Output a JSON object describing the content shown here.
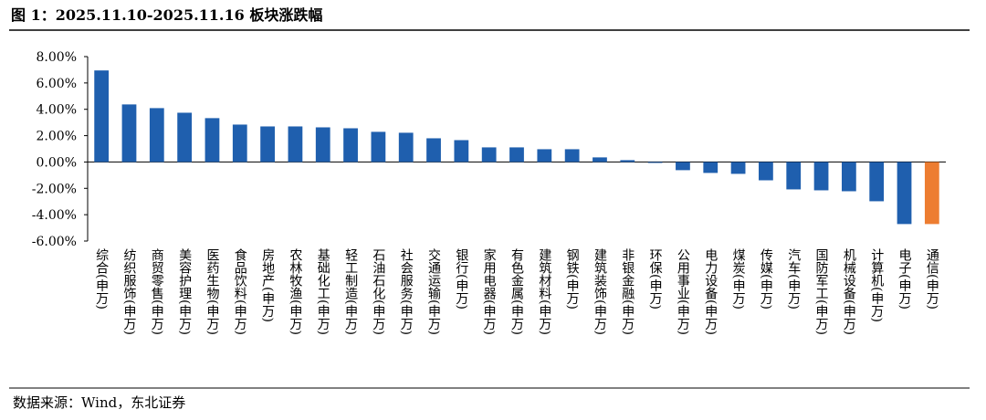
{
  "chart_data": {
    "type": "bar",
    "title": "图 1：2025.11.10-2025.11.16 板块涨跌幅",
    "source": "数据来源：Wind，东北证券",
    "categories": [
      "综合(申万)",
      "纺织服饰(申万)",
      "商贸零售(申万)",
      "美容护理(申万)",
      "医药生物(申万)",
      "食品饮料(申万)",
      "房地产(申万)",
      "农林牧渔(申万)",
      "基础化工(申万)",
      "轻工制造(申万)",
      "石油石化(申万)",
      "社会服务(申万)",
      "交通运输(申万)",
      "银行(申万)",
      "家用电器(申万)",
      "有色金属(申万)",
      "建筑材料(申万)",
      "钢铁(申万)",
      "建筑装饰(申万)",
      "非银金融(申万)",
      "环保(申万)",
      "公用事业(申万)",
      "电力设备(申万)",
      "煤炭(申万)",
      "传媒(申万)",
      "汽车(申万)",
      "国防军工(申万)",
      "机械设备(申万)",
      "计算机(申万)",
      "电子(申万)",
      "通信(申万)"
    ],
    "values": [
      6.95,
      4.37,
      4.09,
      3.74,
      3.33,
      2.84,
      2.7,
      2.7,
      2.63,
      2.56,
      2.29,
      2.22,
      1.8,
      1.66,
      1.11,
      1.11,
      0.97,
      0.97,
      0.35,
      0.14,
      -0.07,
      -0.62,
      -0.83,
      -0.9,
      -1.39,
      -2.08,
      -2.15,
      -2.22,
      -2.98,
      -4.71,
      -4.71
    ],
    "colors": [
      "#1f5fae",
      "#1f5fae",
      "#1f5fae",
      "#1f5fae",
      "#1f5fae",
      "#1f5fae",
      "#1f5fae",
      "#1f5fae",
      "#1f5fae",
      "#1f5fae",
      "#1f5fae",
      "#1f5fae",
      "#1f5fae",
      "#1f5fae",
      "#1f5fae",
      "#1f5fae",
      "#1f5fae",
      "#1f5fae",
      "#1f5fae",
      "#1f5fae",
      "#1f5fae",
      "#1f5fae",
      "#1f5fae",
      "#1f5fae",
      "#1f5fae",
      "#1f5fae",
      "#1f5fae",
      "#1f5fae",
      "#1f5fae",
      "#1f5fae",
      "#ed7d31"
    ],
    "ylim": [
      -6,
      8
    ],
    "yticks": [
      {
        "value": -6,
        "label": "-6.00%"
      },
      {
        "value": -4,
        "label": "-4.00%"
      },
      {
        "value": -2,
        "label": "-2.00%"
      },
      {
        "value": 0,
        "label": "0.00%"
      },
      {
        "value": 2,
        "label": "2.00%"
      },
      {
        "value": 4,
        "label": "4.00%"
      },
      {
        "value": 6,
        "label": "6.00%"
      },
      {
        "value": 8,
        "label": "8.00%"
      }
    ]
  }
}
